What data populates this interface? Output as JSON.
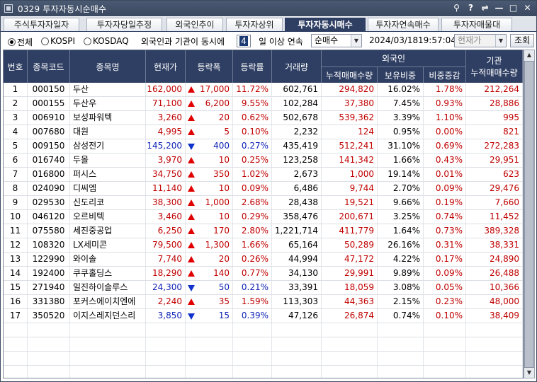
{
  "window": {
    "title": "0329 투자자동시순매수",
    "buttons": [
      "⚲",
      "?",
      "⇌",
      "—",
      "□",
      "✕"
    ]
  },
  "tabs": [
    {
      "label": "주식투자자일자",
      "active": false
    },
    {
      "label": "투자자당일추정",
      "active": false
    },
    {
      "label": "외국인추이",
      "active": false
    },
    {
      "label": "투자자상위",
      "active": false
    },
    {
      "label": "투자자동시매수",
      "active": true
    },
    {
      "label": "투자자연속매수",
      "active": false
    },
    {
      "label": "투자자매물대",
      "active": false
    }
  ],
  "toolbar": {
    "market_all": "전체",
    "market_kospi": "KOSPI",
    "market_kosdaq": "KOSDAQ",
    "selected_market": "전체",
    "condition_prefix": "외국인과 기관이 동시에",
    "days_value": "4",
    "condition_suffix": "일 이상 연속",
    "sort_select": "순매수",
    "date": "2024/03/18",
    "time": "19:57:04",
    "price_select": "현재가",
    "query_button": "조회"
  },
  "table": {
    "headers": {
      "no": "번호",
      "code": "종목코드",
      "name": "종목명",
      "price": "현재가",
      "change": "등락폭",
      "rate": "등락률",
      "volume": "거래량",
      "foreign_group": "외국인",
      "foreign_net": "누적매매수량",
      "foreign_hold": "보유비중",
      "foreign_delta": "비중증감",
      "inst_group": "기관",
      "inst_net": "누적매매수량"
    },
    "rows": [
      {
        "no": "1",
        "code": "000150",
        "name": "두산",
        "price": "162,000",
        "dir": "up",
        "change": "17,000",
        "rate": "11.72%",
        "volume": "602,761",
        "f_net": "294,820",
        "f_hold": "16.02%",
        "f_delta": "1.78%",
        "i_net": "212,264"
      },
      {
        "no": "2",
        "code": "000155",
        "name": "두산우",
        "price": "71,100",
        "dir": "up",
        "change": "6,200",
        "rate": "9.55%",
        "volume": "102,284",
        "f_net": "37,380",
        "f_hold": "7.45%",
        "f_delta": "0.93%",
        "i_net": "28,886"
      },
      {
        "no": "3",
        "code": "006910",
        "name": "보성파워텍",
        "price": "3,260",
        "dir": "up",
        "change": "20",
        "rate": "0.62%",
        "volume": "502,678",
        "f_net": "539,362",
        "f_hold": "3.39%",
        "f_delta": "1.10%",
        "i_net": "995"
      },
      {
        "no": "4",
        "code": "007680",
        "name": "대원",
        "price": "4,995",
        "dir": "up",
        "change": "5",
        "rate": "0.10%",
        "volume": "2,232",
        "f_net": "124",
        "f_hold": "0.95%",
        "f_delta": "0.00%",
        "i_net": "821"
      },
      {
        "no": "5",
        "code": "009150",
        "name": "삼성전기",
        "price": "145,200",
        "dir": "down",
        "change": "400",
        "rate": "0.27%",
        "volume": "435,419",
        "f_net": "512,241",
        "f_hold": "31.10%",
        "f_delta": "0.69%",
        "i_net": "272,283"
      },
      {
        "no": "6",
        "code": "016740",
        "name": "두올",
        "price": "3,970",
        "dir": "up",
        "change": "10",
        "rate": "0.25%",
        "volume": "123,258",
        "f_net": "141,342",
        "f_hold": "1.66%",
        "f_delta": "0.43%",
        "i_net": "29,951"
      },
      {
        "no": "7",
        "code": "016800",
        "name": "퍼시스",
        "price": "34,750",
        "dir": "up",
        "change": "350",
        "rate": "1.02%",
        "volume": "2,673",
        "f_net": "1,000",
        "f_hold": "19.14%",
        "f_delta": "0.01%",
        "i_net": "623"
      },
      {
        "no": "8",
        "code": "024090",
        "name": "디씨엠",
        "price": "11,140",
        "dir": "up",
        "change": "10",
        "rate": "0.09%",
        "volume": "6,486",
        "f_net": "9,744",
        "f_hold": "2.70%",
        "f_delta": "0.09%",
        "i_net": "29,476"
      },
      {
        "no": "9",
        "code": "029530",
        "name": "신도리코",
        "price": "38,300",
        "dir": "up",
        "change": "1,000",
        "rate": "2.68%",
        "volume": "28,438",
        "f_net": "19,521",
        "f_hold": "9.66%",
        "f_delta": "0.19%",
        "i_net": "7,660"
      },
      {
        "no": "10",
        "code": "046120",
        "name": "오르비텍",
        "price": "3,460",
        "dir": "up",
        "change": "10",
        "rate": "0.29%",
        "volume": "358,476",
        "f_net": "200,671",
        "f_hold": "3.25%",
        "f_delta": "0.74%",
        "i_net": "11,452"
      },
      {
        "no": "11",
        "code": "075580",
        "name": "세진중공업",
        "price": "6,250",
        "dir": "up",
        "change": "170",
        "rate": "2.80%",
        "volume": "1,221,714",
        "f_net": "411,779",
        "f_hold": "1.64%",
        "f_delta": "0.73%",
        "i_net": "389,328"
      },
      {
        "no": "12",
        "code": "108320",
        "name": "LX세미콘",
        "price": "79,500",
        "dir": "up",
        "change": "1,300",
        "rate": "1.66%",
        "volume": "65,164",
        "f_net": "50,289",
        "f_hold": "26.16%",
        "f_delta": "0.31%",
        "i_net": "38,331"
      },
      {
        "no": "13",
        "code": "122990",
        "name": "와이솔",
        "price": "7,740",
        "dir": "up",
        "change": "20",
        "rate": "0.26%",
        "volume": "44,994",
        "f_net": "47,172",
        "f_hold": "4.22%",
        "f_delta": "0.17%",
        "i_net": "24,890"
      },
      {
        "no": "14",
        "code": "192400",
        "name": "쿠쿠홀딩스",
        "price": "18,290",
        "dir": "up",
        "change": "140",
        "rate": "0.77%",
        "volume": "34,130",
        "f_net": "29,991",
        "f_hold": "9.89%",
        "f_delta": "0.09%",
        "i_net": "26,488"
      },
      {
        "no": "15",
        "code": "271940",
        "name": "일진하이솔루스",
        "price": "24,300",
        "dir": "down",
        "change": "50",
        "rate": "0.21%",
        "volume": "33,391",
        "f_net": "18,059",
        "f_hold": "3.08%",
        "f_delta": "0.05%",
        "i_net": "10,366"
      },
      {
        "no": "16",
        "code": "331380",
        "name": "포커스에이치엔에",
        "price": "2,240",
        "dir": "up",
        "change": "35",
        "rate": "1.59%",
        "volume": "113,303",
        "f_net": "44,363",
        "f_hold": "2.15%",
        "f_delta": "0.23%",
        "i_net": "48,000"
      },
      {
        "no": "17",
        "code": "350520",
        "name": "이지스레지던스리",
        "price": "3,850",
        "dir": "down",
        "change": "15",
        "rate": "0.39%",
        "volume": "47,126",
        "f_net": "26,874",
        "f_hold": "0.74%",
        "f_delta": "0.10%",
        "i_net": "38,409"
      }
    ]
  },
  "colors": {
    "header_bg": "#2f3f63",
    "up": "#c00000",
    "down": "#1024b6"
  }
}
